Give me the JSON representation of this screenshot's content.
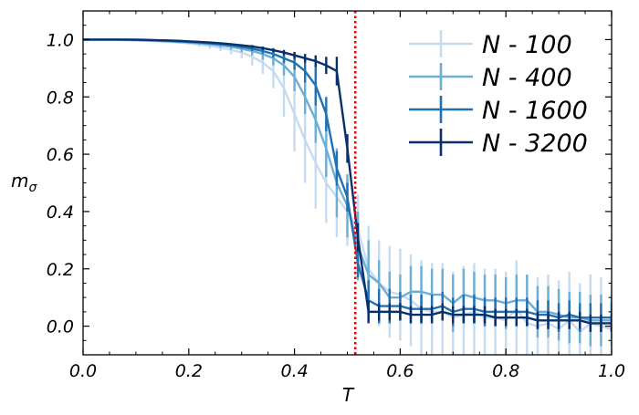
{
  "chart_data": {
    "type": "line",
    "title": "",
    "xlabel": "T",
    "ylabel_main": "m",
    "ylabel_sub": "σ",
    "xlim": [
      0.0,
      1.0
    ],
    "ylim": [
      -0.1,
      1.1
    ],
    "xticks": [
      0.0,
      0.2,
      0.4,
      0.6,
      0.8,
      1.0
    ],
    "xtick_labels": [
      "0.0",
      "0.2",
      "0.4",
      "0.6",
      "0.8",
      "1.0"
    ],
    "yticks": [
      0.0,
      0.2,
      0.4,
      0.6,
      0.8,
      1.0
    ],
    "ytick_labels": [
      "0.0",
      "0.2",
      "0.4",
      "0.6",
      "0.8",
      "1.0"
    ],
    "grid": false,
    "legend_position": "top-right",
    "critical_line": {
      "x": 0.515,
      "color": "#e8000b",
      "style": "dotted"
    },
    "x": [
      0.0,
      0.02,
      0.04,
      0.06,
      0.08,
      0.1,
      0.12,
      0.14,
      0.16,
      0.18,
      0.2,
      0.22,
      0.24,
      0.26,
      0.28,
      0.3,
      0.32,
      0.34,
      0.36,
      0.38,
      0.4,
      0.42,
      0.44,
      0.46,
      0.48,
      0.5,
      0.52,
      0.54,
      0.56,
      0.58,
      0.6,
      0.62,
      0.64,
      0.66,
      0.68,
      0.7,
      0.72,
      0.74,
      0.76,
      0.78,
      0.8,
      0.82,
      0.84,
      0.86,
      0.88,
      0.9,
      0.92,
      0.94,
      0.96,
      0.98,
      1.0
    ],
    "series": [
      {
        "name": "N - 100",
        "color": "#c6dbef",
        "values": [
          1.0,
          1.0,
          1.0,
          0.999,
          0.998,
          0.997,
          0.996,
          0.994,
          0.992,
          0.99,
          0.987,
          0.983,
          0.978,
          0.972,
          0.964,
          0.955,
          0.94,
          0.92,
          0.89,
          0.83,
          0.74,
          0.65,
          0.57,
          0.5,
          0.45,
          0.4,
          0.34,
          0.2,
          0.15,
          0.12,
          0.11,
          0.09,
          0.06,
          0.05,
          0.05,
          0.03,
          0.04,
          0.05,
          0.03,
          0.03,
          0.02,
          0.06,
          0.01,
          0.0,
          0.01,
          -0.01,
          0.02,
          -0.02,
          0.01,
          0.0,
          -0.01
        ],
        "errors": [
          0.0,
          0.0,
          0.0,
          0.0,
          0.0,
          0.0,
          0.0,
          0.0,
          0.0,
          0.005,
          0.005,
          0.008,
          0.01,
          0.012,
          0.015,
          0.02,
          0.03,
          0.04,
          0.06,
          0.1,
          0.13,
          0.15,
          0.16,
          0.14,
          0.14,
          0.12,
          0.12,
          0.15,
          0.15,
          0.16,
          0.16,
          0.16,
          0.17,
          0.17,
          0.17,
          0.16,
          0.17,
          0.17,
          0.17,
          0.17,
          0.17,
          0.17,
          0.17,
          0.17,
          0.17,
          0.17,
          0.17,
          0.17,
          0.17,
          0.17,
          0.17
        ]
      },
      {
        "name": "N - 400",
        "color": "#6baed6",
        "values": [
          1.0,
          1.0,
          1.0,
          1.0,
          0.999,
          0.998,
          0.997,
          0.996,
          0.994,
          0.992,
          0.99,
          0.987,
          0.984,
          0.98,
          0.975,
          0.968,
          0.96,
          0.95,
          0.935,
          0.91,
          0.87,
          0.8,
          0.72,
          0.62,
          0.5,
          0.42,
          0.28,
          0.18,
          0.15,
          0.1,
          0.1,
          0.12,
          0.12,
          0.11,
          0.11,
          0.08,
          0.11,
          0.1,
          0.09,
          0.09,
          0.08,
          0.09,
          0.09,
          0.05,
          0.05,
          0.04,
          0.03,
          0.03,
          0.02,
          0.02,
          0.02
        ],
        "errors": [
          0.0,
          0.0,
          0.0,
          0.0,
          0.0,
          0.0,
          0.0,
          0.0,
          0.0,
          0.003,
          0.004,
          0.005,
          0.006,
          0.008,
          0.01,
          0.012,
          0.015,
          0.02,
          0.025,
          0.035,
          0.05,
          0.06,
          0.08,
          0.1,
          0.12,
          0.11,
          0.12,
          0.12,
          0.08,
          0.09,
          0.08,
          0.09,
          0.09,
          0.09,
          0.09,
          0.1,
          0.09,
          0.09,
          0.09,
          0.09,
          0.09,
          0.09,
          0.09,
          0.09,
          0.09,
          0.09,
          0.09,
          0.09,
          0.09,
          0.09,
          0.09
        ]
      },
      {
        "name": "N - 1600",
        "color": "#2171b5",
        "values": [
          1.0,
          1.0,
          1.0,
          1.0,
          1.0,
          0.999,
          0.998,
          0.997,
          0.996,
          0.994,
          0.992,
          0.99,
          0.987,
          0.984,
          0.98,
          0.975,
          0.968,
          0.96,
          0.95,
          0.935,
          0.92,
          0.89,
          0.84,
          0.74,
          0.55,
          0.45,
          0.22,
          0.09,
          0.07,
          0.07,
          0.07,
          0.06,
          0.06,
          0.06,
          0.07,
          0.05,
          0.06,
          0.06,
          0.05,
          0.05,
          0.05,
          0.05,
          0.05,
          0.04,
          0.04,
          0.03,
          0.04,
          0.03,
          0.03,
          0.03,
          0.03
        ],
        "errors": [
          0.0,
          0.0,
          0.0,
          0.0,
          0.0,
          0.0,
          0.0,
          0.0,
          0.0,
          0.0,
          0.002,
          0.003,
          0.003,
          0.004,
          0.005,
          0.006,
          0.008,
          0.01,
          0.013,
          0.017,
          0.025,
          0.04,
          0.07,
          0.06,
          0.06,
          0.05,
          0.05,
          0.07,
          0.06,
          0.06,
          0.05,
          0.05,
          0.05,
          0.05,
          0.05,
          0.05,
          0.05,
          0.05,
          0.05,
          0.05,
          0.05,
          0.05,
          0.05,
          0.05,
          0.05,
          0.05,
          0.05,
          0.05,
          0.05,
          0.05,
          0.05
        ]
      },
      {
        "name": "N - 3200",
        "color": "#08306b",
        "values": [
          1.0,
          1.0,
          1.0,
          1.0,
          1.0,
          1.0,
          0.999,
          0.998,
          0.997,
          0.996,
          0.994,
          0.992,
          0.99,
          0.987,
          0.984,
          0.98,
          0.976,
          0.97,
          0.963,
          0.955,
          0.945,
          0.935,
          0.925,
          0.91,
          0.89,
          0.62,
          0.31,
          0.05,
          0.05,
          0.05,
          0.05,
          0.04,
          0.04,
          0.04,
          0.05,
          0.04,
          0.04,
          0.04,
          0.04,
          0.03,
          0.03,
          0.03,
          0.03,
          0.02,
          0.02,
          0.02,
          0.02,
          0.02,
          0.01,
          0.01,
          0.01
        ],
        "errors": [
          0.0,
          0.0,
          0.0,
          0.0,
          0.0,
          0.0,
          0.0,
          0.0,
          0.0,
          0.0,
          0.0,
          0.002,
          0.002,
          0.003,
          0.003,
          0.004,
          0.005,
          0.006,
          0.007,
          0.009,
          0.012,
          0.015,
          0.02,
          0.03,
          0.05,
          0.05,
          0.05,
          0.04,
          0.03,
          0.03,
          0.03,
          0.03,
          0.03,
          0.03,
          0.03,
          0.03,
          0.03,
          0.03,
          0.03,
          0.03,
          0.03,
          0.03,
          0.03,
          0.03,
          0.03,
          0.03,
          0.03,
          0.03,
          0.03,
          0.03,
          0.03
        ]
      }
    ]
  }
}
